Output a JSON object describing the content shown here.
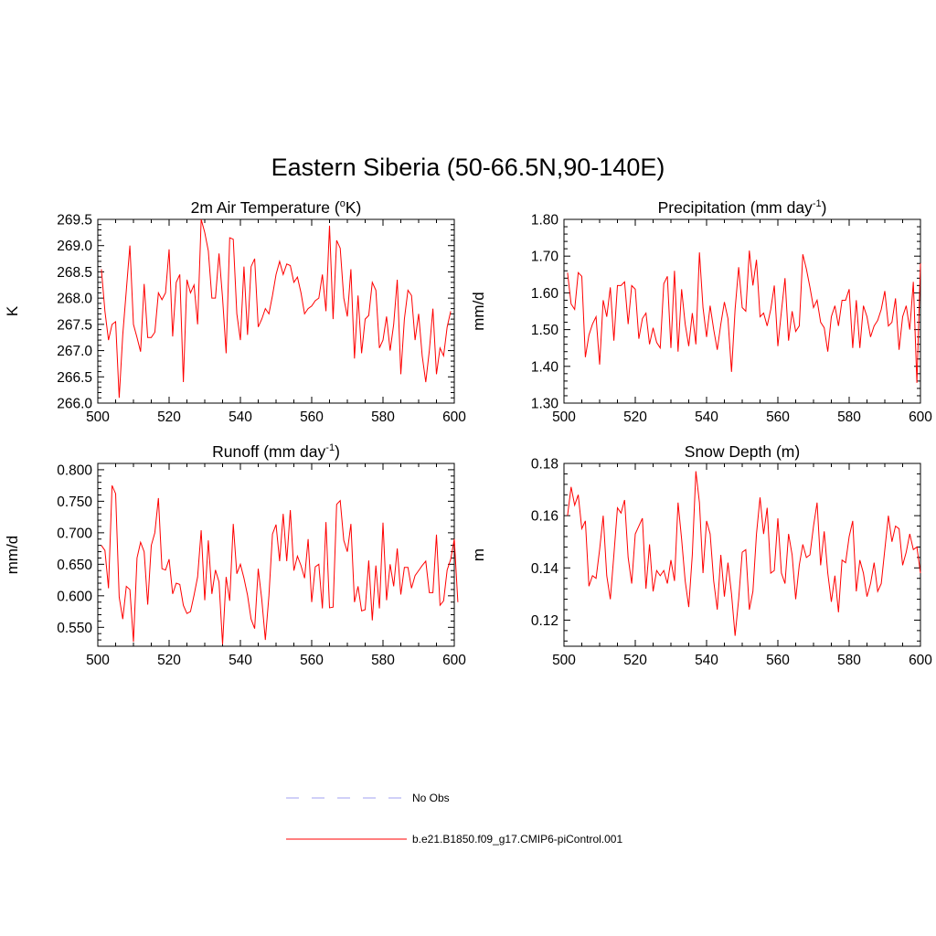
{
  "main_title": "Eastern Siberia (50-66.5N,90-140E)",
  "colors": {
    "model": "#ff0000",
    "obs": "#a0a0f0",
    "axis": "#000000"
  },
  "legend": {
    "obs_label": "No Obs",
    "model_label": "b.e21.B1850.f09_g17.CMIP6-piControl.001"
  },
  "chart_data": [
    {
      "type": "line",
      "title_main": "2m Air Temperature (",
      "title_sup_o": "o",
      "title_rest": "K)",
      "ylabel": "K",
      "xlim": [
        500,
        600
      ],
      "ylim": [
        266.0,
        269.5
      ],
      "xticks": [
        "500",
        "520",
        "540",
        "560",
        "580",
        "600"
      ],
      "yticks": [
        "266.0",
        "266.5",
        "267.0",
        "267.5",
        "268.0",
        "268.5",
        "269.0",
        "269.5"
      ],
      "x_start": 501,
      "values": [
        268.55,
        267.75,
        267.2,
        267.5,
        267.55,
        266.1,
        267.3,
        268.15,
        269.0,
        267.5,
        267.25,
        266.98,
        268.27,
        267.25,
        267.25,
        267.35,
        268.1,
        267.97,
        268.1,
        268.93,
        267.27,
        268.3,
        268.45,
        266.4,
        268.35,
        268.1,
        268.25,
        267.5,
        269.5,
        269.25,
        268.9,
        268.0,
        268.0,
        268.85,
        268.0,
        266.95,
        269.15,
        269.12,
        267.7,
        267.2,
        268.6,
        267.3,
        268.6,
        268.75,
        267.45,
        267.6,
        267.8,
        267.7,
        268.05,
        268.45,
        268.7,
        268.45,
        268.65,
        268.62,
        268.3,
        268.4,
        268.1,
        267.7,
        267.8,
        267.85,
        267.95,
        268.0,
        268.45,
        267.75,
        269.38,
        267.6,
        269.1,
        268.95,
        268.0,
        267.65,
        268.55,
        266.85,
        268.05,
        266.95,
        267.6,
        267.67,
        268.3,
        268.15,
        267.05,
        267.2,
        267.65,
        267.0,
        267.5,
        268.35,
        266.55,
        267.6,
        268.15,
        268.05,
        267.2,
        267.7,
        266.9,
        266.4,
        267.0,
        267.8,
        266.55,
        267.05,
        266.9,
        267.45,
        267.75
      ]
    },
    {
      "type": "line",
      "title_main": "Precipitation (mm day",
      "title_sup": "-1",
      "title_rest": ")",
      "ylabel": "mm/d",
      "xlim": [
        500,
        600
      ],
      "ylim": [
        1.3,
        1.8
      ],
      "xticks": [
        "500",
        "520",
        "540",
        "560",
        "580",
        "600"
      ],
      "yticks": [
        "1.30",
        "1.40",
        "1.50",
        "1.60",
        "1.70",
        "1.80"
      ],
      "x_start": 501,
      "values": [
        1.655,
        1.57,
        1.555,
        1.655,
        1.645,
        1.425,
        1.485,
        1.515,
        1.535,
        1.405,
        1.58,
        1.535,
        1.615,
        1.47,
        1.62,
        1.62,
        1.63,
        1.515,
        1.62,
        1.61,
        1.475,
        1.53,
        1.545,
        1.46,
        1.505,
        1.465,
        1.45,
        1.625,
        1.645,
        1.45,
        1.66,
        1.44,
        1.61,
        1.515,
        1.455,
        1.545,
        1.46,
        1.71,
        1.56,
        1.48,
        1.565,
        1.5,
        1.445,
        1.515,
        1.575,
        1.53,
        1.385,
        1.555,
        1.67,
        1.56,
        1.55,
        1.715,
        1.62,
        1.69,
        1.535,
        1.545,
        1.51,
        1.555,
        1.62,
        1.455,
        1.55,
        1.64,
        1.47,
        1.55,
        1.495,
        1.51,
        1.705,
        1.665,
        1.615,
        1.56,
        1.58,
        1.52,
        1.505,
        1.44,
        1.535,
        1.565,
        1.51,
        1.58,
        1.58,
        1.61,
        1.45,
        1.58,
        1.45,
        1.565,
        1.535,
        1.48,
        1.51,
        1.525,
        1.555,
        1.605,
        1.51,
        1.52,
        1.585,
        1.445,
        1.535,
        1.565,
        1.5,
        1.63,
        1.355,
        1.68
      ]
    },
    {
      "type": "line",
      "title_main": "Runoff (mm day",
      "title_sup": "-1",
      "title_rest": ")",
      "ylabel": "mm/d",
      "xlim": [
        500,
        600
      ],
      "ylim": [
        0.52,
        0.81
      ],
      "xticks": [
        "500",
        "520",
        "540",
        "560",
        "580",
        "600"
      ],
      "yticks": [
        "0.550",
        "0.600",
        "0.650",
        "0.700",
        "0.750",
        "0.800"
      ],
      "x_start": 501,
      "values": [
        0.68,
        0.672,
        0.612,
        0.775,
        0.762,
        0.598,
        0.563,
        0.615,
        0.61,
        0.527,
        0.66,
        0.685,
        0.67,
        0.586,
        0.68,
        0.7,
        0.755,
        0.643,
        0.641,
        0.658,
        0.603,
        0.62,
        0.618,
        0.585,
        0.572,
        0.575,
        0.601,
        0.63,
        0.704,
        0.593,
        0.688,
        0.603,
        0.641,
        0.622,
        0.523,
        0.63,
        0.592,
        0.714,
        0.635,
        0.65,
        0.628,
        0.601,
        0.563,
        0.548,
        0.643,
        0.594,
        0.53,
        0.6,
        0.698,
        0.713,
        0.655,
        0.73,
        0.655,
        0.736,
        0.64,
        0.663,
        0.648,
        0.628,
        0.69,
        0.59,
        0.646,
        0.65,
        0.58,
        0.717,
        0.581,
        0.582,
        0.745,
        0.751,
        0.688,
        0.67,
        0.714,
        0.59,
        0.615,
        0.576,
        0.578,
        0.656,
        0.561,
        0.648,
        0.58,
        0.716,
        0.593,
        0.65,
        0.615,
        0.675,
        0.602,
        0.645,
        0.645,
        0.612,
        0.632,
        0.64,
        0.648,
        0.655,
        0.605,
        0.605,
        0.697,
        0.585,
        0.592,
        0.641,
        0.658,
        0.69,
        0.59
      ]
    },
    {
      "type": "line",
      "title_main": "Snow Depth (m)",
      "ylabel": "m",
      "xlim": [
        500,
        600
      ],
      "ylim": [
        0.11,
        0.18
      ],
      "xticks": [
        "500",
        "520",
        "540",
        "560",
        "580",
        "600"
      ],
      "yticks": [
        "0.12",
        "0.14",
        "0.16",
        "0.18"
      ],
      "x_start": 501,
      "values": [
        0.16,
        0.171,
        0.164,
        0.168,
        0.155,
        0.158,
        0.133,
        0.137,
        0.136,
        0.147,
        0.16,
        0.137,
        0.128,
        0.145,
        0.163,
        0.161,
        0.166,
        0.144,
        0.134,
        0.153,
        0.156,
        0.159,
        0.132,
        0.149,
        0.131,
        0.139,
        0.137,
        0.139,
        0.134,
        0.143,
        0.135,
        0.165,
        0.151,
        0.135,
        0.125,
        0.145,
        0.177,
        0.165,
        0.138,
        0.158,
        0.153,
        0.135,
        0.124,
        0.145,
        0.129,
        0.142,
        0.13,
        0.114,
        0.128,
        0.146,
        0.147,
        0.124,
        0.131,
        0.153,
        0.167,
        0.153,
        0.163,
        0.138,
        0.139,
        0.159,
        0.138,
        0.134,
        0.153,
        0.145,
        0.128,
        0.141,
        0.149,
        0.144,
        0.145,
        0.156,
        0.165,
        0.141,
        0.154,
        0.138,
        0.127,
        0.137,
        0.123,
        0.143,
        0.142,
        0.152,
        0.158,
        0.131,
        0.143,
        0.138,
        0.129,
        0.134,
        0.142,
        0.131,
        0.134,
        0.147,
        0.16,
        0.15,
        0.156,
        0.155,
        0.141,
        0.146,
        0.153,
        0.147,
        0.148,
        0.138
      ]
    }
  ]
}
